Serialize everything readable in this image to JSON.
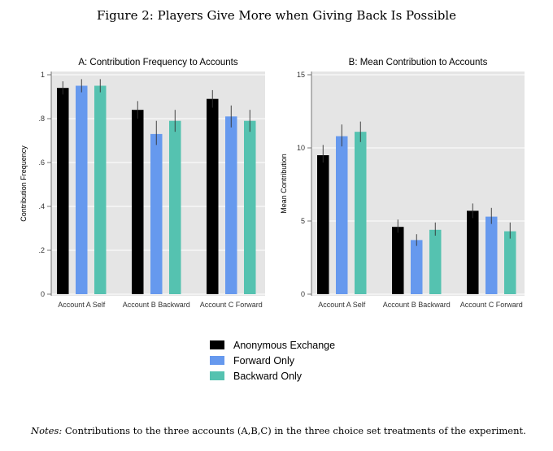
{
  "figure_title": "Figure 2: Players Give More when Giving Back Is Possible",
  "notes_label": "Notes:",
  "notes_text": "Contributions to the three accounts (A,B,C) in the three choice set treatments of the experiment.",
  "colors": {
    "Anonymous Exchange": "#000000",
    "Forward Only": "#6699ee",
    "Backward Only": "#55c2b0",
    "plot_background": "#e5e5e5",
    "error_bar": "#333333"
  },
  "legend": [
    "Anonymous Exchange",
    "Forward Only",
    "Backward Only"
  ],
  "chart_data": [
    {
      "type": "bar",
      "title": "A: Contribution Frequency to Accounts",
      "ylabel": "Contribution Frequency",
      "xlabel": "",
      "ylim": [
        0,
        1
      ],
      "yticks": [
        0,
        0.2,
        0.4,
        0.6,
        0.8,
        1
      ],
      "ytick_labels": [
        "0",
        ".2",
        ".4",
        ".6",
        ".8",
        "1"
      ],
      "grid": true,
      "categories": [
        "Account A Self",
        "Account B Backward",
        "Account C Forward"
      ],
      "series": [
        {
          "name": "Anonymous Exchange",
          "values": [
            0.94,
            0.84,
            0.89
          ],
          "err_low": [
            0.91,
            0.8,
            0.85
          ],
          "err_high": [
            0.97,
            0.88,
            0.93
          ]
        },
        {
          "name": "Forward Only",
          "values": [
            0.95,
            0.73,
            0.81
          ],
          "err_low": [
            0.92,
            0.68,
            0.76
          ],
          "err_high": [
            0.98,
            0.79,
            0.86
          ]
        },
        {
          "name": "Backward Only",
          "values": [
            0.95,
            0.79,
            0.79
          ],
          "err_low": [
            0.92,
            0.74,
            0.74
          ],
          "err_high": [
            0.98,
            0.84,
            0.84
          ]
        }
      ]
    },
    {
      "type": "bar",
      "title": "B: Mean Contribution to Accounts",
      "ylabel": "Mean Contribution",
      "xlabel": "",
      "ylim": [
        0,
        15
      ],
      "yticks": [
        0,
        5,
        10,
        15
      ],
      "ytick_labels": [
        "0",
        "5",
        "10",
        "15"
      ],
      "grid": true,
      "categories": [
        "Account A Self",
        "Account B Backward",
        "Account C Forward"
      ],
      "series": [
        {
          "name": "Anonymous Exchange",
          "values": [
            9.5,
            4.6,
            5.7
          ],
          "err_low": [
            9.0,
            4.2,
            5.2
          ],
          "err_high": [
            10.2,
            5.1,
            6.2
          ]
        },
        {
          "name": "Forward Only",
          "values": [
            10.8,
            3.7,
            5.3
          ],
          "err_low": [
            10.1,
            3.3,
            4.8
          ],
          "err_high": [
            11.6,
            4.1,
            5.9
          ]
        },
        {
          "name": "Backward Only",
          "values": [
            11.1,
            4.4,
            4.3
          ],
          "err_low": [
            10.4,
            4.0,
            3.8
          ],
          "err_high": [
            11.8,
            4.9,
            4.9
          ]
        }
      ]
    }
  ]
}
